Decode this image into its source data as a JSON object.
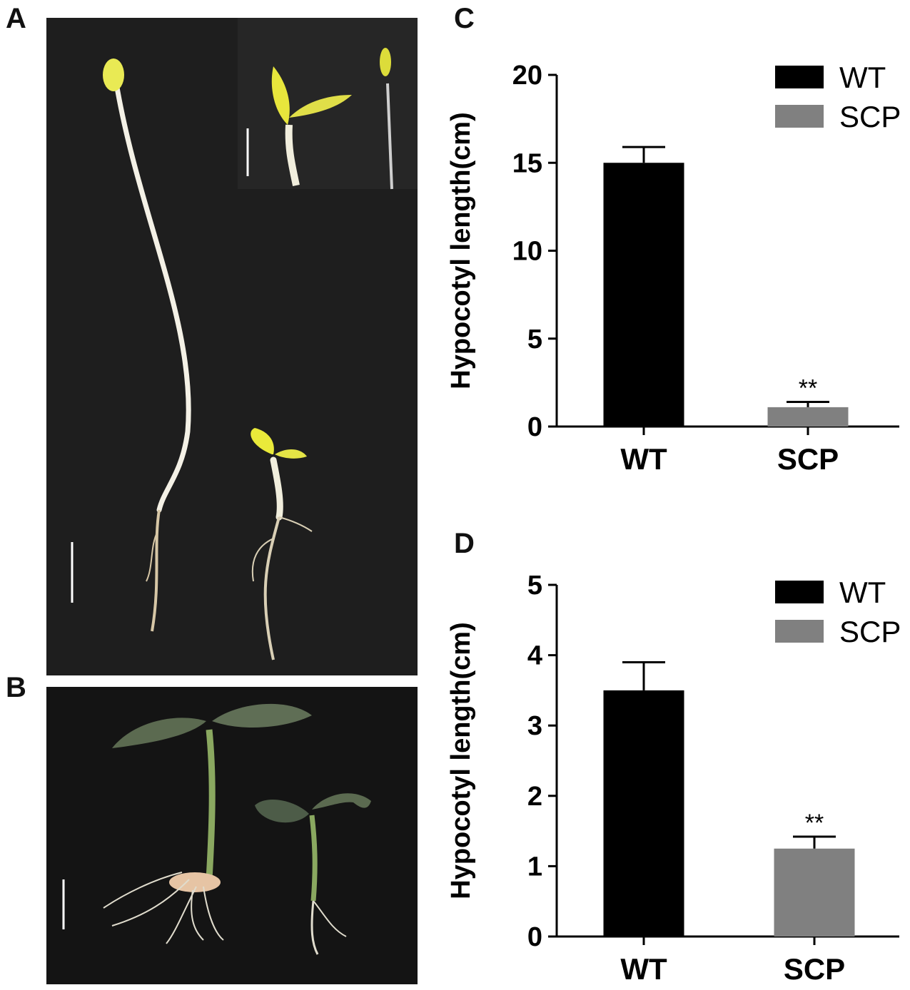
{
  "panels": {
    "a": "A",
    "b": "B",
    "c": "C",
    "d": "D"
  },
  "chart_data": [
    {
      "type": "bar",
      "panel": "C",
      "categories": [
        "WT",
        "SCP"
      ],
      "values": [
        15.0,
        1.1
      ],
      "errors": [
        0.9,
        0.3
      ],
      "significance": [
        "",
        "**"
      ],
      "colors": [
        "#000000",
        "#808080"
      ],
      "ylabel": "Hypocotyl length(cm)",
      "xlabel": "",
      "ylim": [
        0,
        20
      ],
      "yticks": [
        0,
        5,
        10,
        15,
        20
      ],
      "legend": {
        "position": "top-right",
        "entries": [
          "WT",
          "SCP"
        ]
      },
      "grid": false
    },
    {
      "type": "bar",
      "panel": "D",
      "categories": [
        "WT",
        "SCP"
      ],
      "values": [
        3.5,
        1.25
      ],
      "errors": [
        0.4,
        0.17
      ],
      "significance": [
        "",
        "**"
      ],
      "colors": [
        "#000000",
        "#808080"
      ],
      "ylabel": "Hypocotyl length(cm)",
      "xlabel": "",
      "ylim": [
        0,
        5
      ],
      "yticks": [
        0,
        1,
        2,
        3,
        4,
        5
      ],
      "legend": {
        "position": "top-right",
        "entries": [
          "WT",
          "SCP"
        ]
      },
      "grid": false
    }
  ]
}
